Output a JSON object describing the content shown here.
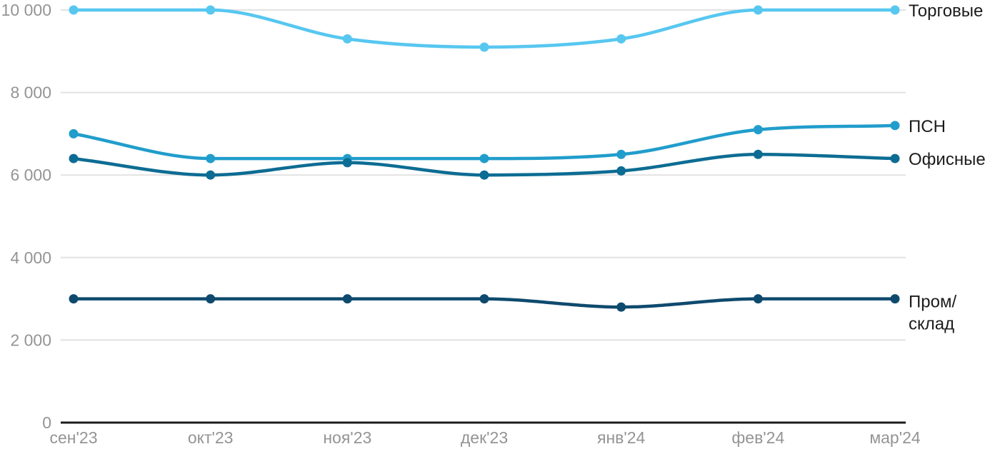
{
  "chart_data": {
    "type": "line",
    "title": "",
    "xlabel": "",
    "ylabel": "",
    "grid": true,
    "legend_position": "right-end-of-lines",
    "ylim": [
      0,
      10000
    ],
    "yticks": [
      0,
      2000,
      4000,
      6000,
      8000,
      10000
    ],
    "ytick_labels": [
      "0",
      "2 000",
      "4 000",
      "6 000",
      "8 000",
      "10 000"
    ],
    "categories": [
      "сен'23",
      "окт'23",
      "ноя'23",
      "дек'23",
      "янв'24",
      "фев'24",
      "мар'24"
    ],
    "series": [
      {
        "name": "Торговые",
        "slug": "torgovye",
        "color": "#57c7f0",
        "label_lines": [
          "Торговые"
        ],
        "values": [
          10000,
          10000,
          9300,
          9100,
          9300,
          10000,
          10000
        ]
      },
      {
        "name": "ПСН",
        "slug": "psn",
        "color": "#219dcb",
        "label_lines": [
          "ПСН"
        ],
        "values": [
          7000,
          6400,
          6400,
          6400,
          6500,
          7100,
          7200
        ]
      },
      {
        "name": "Офисные",
        "slug": "ofisnye",
        "color": "#0d6c93",
        "label_lines": [
          "Офисные"
        ],
        "values": [
          6400,
          6000,
          6300,
          6000,
          6100,
          6500,
          6400
        ]
      },
      {
        "name": "Пром/склад",
        "slug": "prom-sklad",
        "color": "#0e4a6e",
        "label_lines": [
          "Пром/",
          "склад"
        ],
        "values": [
          3000,
          3000,
          3000,
          3000,
          2800,
          3000,
          3000
        ]
      }
    ]
  },
  "colors": {
    "grid": "#e2e2e2",
    "axis": "#1c1c1c",
    "tick_text": "#949494",
    "label_text": "#1c1c1c",
    "background": "#ffffff"
  }
}
